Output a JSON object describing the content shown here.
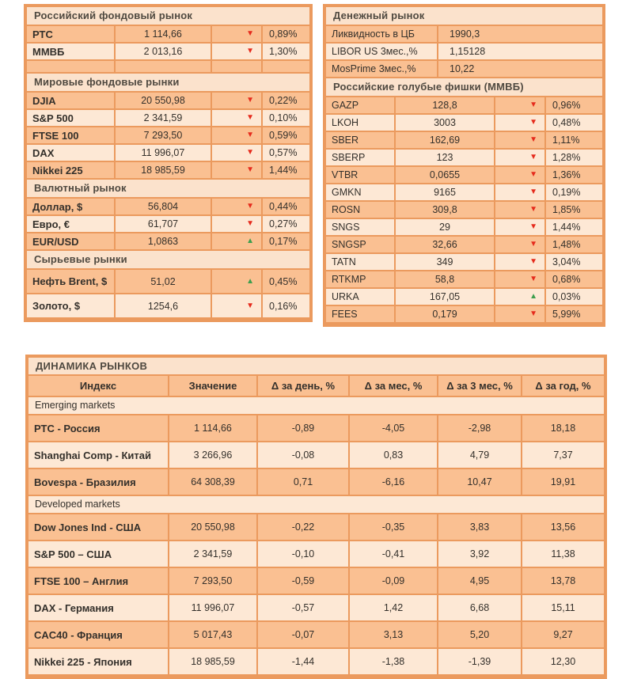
{
  "palette": {
    "frame_orange": "#EB9A5E",
    "row_dark": "#FAC092",
    "row_light": "#FDE8D5",
    "title_strip": "#FBE2CC",
    "negative_red": "#E52A1C",
    "positive_green": "#3C9E4D"
  },
  "russian_market": {
    "title": "Российский фондовый рынок",
    "rows": [
      {
        "label": "РТС",
        "value": "1 114,66",
        "change_icon": "▼",
        "change_dir": "down",
        "change_pct": "0,89%"
      },
      {
        "label": "ММВБ",
        "value": "2 013,16",
        "change_icon": "▼",
        "change_dir": "down",
        "change_pct": "1,30%"
      }
    ]
  },
  "world_markets": {
    "title": "Мировые фондовые рынки",
    "rows": [
      {
        "label": "DJIA",
        "value": "20 550,98",
        "change_icon": "▼",
        "change_dir": "down",
        "change_pct": "0,22%"
      },
      {
        "label": "S&P 500",
        "value": "2 341,59",
        "change_icon": "▼",
        "change_dir": "down",
        "change_pct": "0,10%"
      },
      {
        "label": "FTSE 100",
        "value": "7 293,50",
        "change_icon": "▼",
        "change_dir": "down",
        "change_pct": "0,59%"
      },
      {
        "label": "DAX",
        "value": "11 996,07",
        "change_icon": "▼",
        "change_dir": "down",
        "change_pct": "0,57%"
      },
      {
        "label": "Nikkei 225",
        "value": "18 985,59",
        "change_icon": "▼",
        "change_dir": "down",
        "change_pct": "1,44%"
      }
    ]
  },
  "currency_market": {
    "title": "Валютный рынок",
    "rows": [
      {
        "label": "Доллар, $",
        "value": "56,804",
        "change_icon": "▼",
        "change_dir": "down",
        "change_pct": "0,44%"
      },
      {
        "label": "Евро, €",
        "value": "61,707",
        "change_icon": "▼",
        "change_dir": "down",
        "change_pct": "0,27%"
      },
      {
        "label": "EUR/USD",
        "value": "1,0863",
        "change_icon": "▲",
        "change_dir": "up",
        "change_pct": "0,17%"
      }
    ]
  },
  "commodity_markets": {
    "title": "Сырьевые рынки",
    "rows": [
      {
        "label": "Нефть Brent, $",
        "value": "51,02",
        "change_icon": "▲",
        "change_dir": "up",
        "change_pct": "0,45%"
      },
      {
        "label": "Золото, $",
        "value": "1254,6",
        "change_icon": "▼",
        "change_dir": "down",
        "change_pct": "0,16%"
      }
    ]
  },
  "money_market": {
    "title": "Денежный рынок",
    "rows": [
      {
        "label": "Ликвидность в ЦБ",
        "value": "1990,3"
      },
      {
        "label": "LIBOR US 3мес.,%",
        "value": "1,15128"
      },
      {
        "label": "MosPrime 3мес.,%",
        "value": "10,22"
      }
    ]
  },
  "blue_chips": {
    "title": "Российские голубые фишки (ММВБ)",
    "rows": [
      {
        "label": "GAZP",
        "value": "128,8",
        "change_icon": "▼",
        "change_dir": "down",
        "change_pct": "0,96%"
      },
      {
        "label": "LKOH",
        "value": "3003",
        "change_icon": "▼",
        "change_dir": "down",
        "change_pct": "0,48%"
      },
      {
        "label": "SBER",
        "value": "162,69",
        "change_icon": "▼",
        "change_dir": "down",
        "change_pct": "1,11%"
      },
      {
        "label": "SBERP",
        "value": "123",
        "change_icon": "▼",
        "change_dir": "down",
        "change_pct": "1,28%"
      },
      {
        "label": "VTBR",
        "value": "0,0655",
        "change_icon": "▼",
        "change_dir": "down",
        "change_pct": "1,36%"
      },
      {
        "label": "GMKN",
        "value": "9165",
        "change_icon": "▼",
        "change_dir": "down",
        "change_pct": "0,19%"
      },
      {
        "label": "ROSN",
        "value": "309,8",
        "change_icon": "▼",
        "change_dir": "down",
        "change_pct": "1,85%"
      },
      {
        "label": "SNGS",
        "value": "29",
        "change_icon": "▼",
        "change_dir": "down",
        "change_pct": "1,44%"
      },
      {
        "label": "SNGSP",
        "value": "32,66",
        "change_icon": "▼",
        "change_dir": "down",
        "change_pct": "1,48%"
      },
      {
        "label": "TATN",
        "value": "349",
        "change_icon": "▼",
        "change_dir": "down",
        "change_pct": "3,04%"
      },
      {
        "label": "RTKMP",
        "value": "58,8",
        "change_icon": "▼",
        "change_dir": "down",
        "change_pct": "0,68%"
      },
      {
        "label": "URKA",
        "value": "167,05",
        "change_icon": "▲",
        "change_dir": "up",
        "change_pct": "0,03%"
      },
      {
        "label": "FEES",
        "value": "0,179",
        "change_icon": "▼",
        "change_dir": "down",
        "change_pct": "5,99%"
      }
    ]
  },
  "dynamics": {
    "title": "ДИНАМИКА РЫНКОВ",
    "headers": [
      "Индекс",
      "Значение",
      "Δ за день, %",
      "Δ за мес, %",
      "Δ за 3 мес, %",
      "Δ за год, %"
    ],
    "emerging": {
      "label": "Emerging markets",
      "rows": [
        {
          "index": "РТС - Россия",
          "value": "1 114,66",
          "day": "-0,89",
          "month": "-4,05",
          "quarter": "-2,98",
          "year": "18,18"
        },
        {
          "index": "Shanghai Comp - Китай",
          "value": "3 266,96",
          "day": "-0,08",
          "month": "0,83",
          "quarter": "4,79",
          "year": "7,37"
        },
        {
          "index": "Bovespa - Бразилия",
          "value": "64 308,39",
          "day": "0,71",
          "month": "-6,16",
          "quarter": "10,47",
          "year": "19,91"
        }
      ]
    },
    "developed": {
      "label": "Developed markets",
      "rows": [
        {
          "index": "Dow Jones Ind - США",
          "value": "20 550,98",
          "day": "-0,22",
          "month": "-0,35",
          "quarter": "3,83",
          "year": "13,56"
        },
        {
          "index": "S&P 500 – США",
          "value": "2 341,59",
          "day": "-0,10",
          "month": "-0,41",
          "quarter": "3,92",
          "year": "11,38"
        },
        {
          "index": "FTSE 100 – Англия",
          "value": "7 293,50",
          "day": "-0,59",
          "month": "-0,09",
          "quarter": "4,95",
          "year": "13,78"
        },
        {
          "index": "DAX - Германия",
          "value": "11 996,07",
          "day": "-0,57",
          "month": "1,42",
          "quarter": "6,68",
          "year": "15,11"
        },
        {
          "index": "CAC40 - Франция",
          "value": "5 017,43",
          "day": "-0,07",
          "month": "3,13",
          "quarter": "5,20",
          "year": "9,27"
        },
        {
          "index": "Nikkei 225 - Япония",
          "value": "18 985,59",
          "day": "-1,44",
          "month": "-1,38",
          "quarter": "-1,39",
          "year": "12,30"
        }
      ]
    }
  }
}
